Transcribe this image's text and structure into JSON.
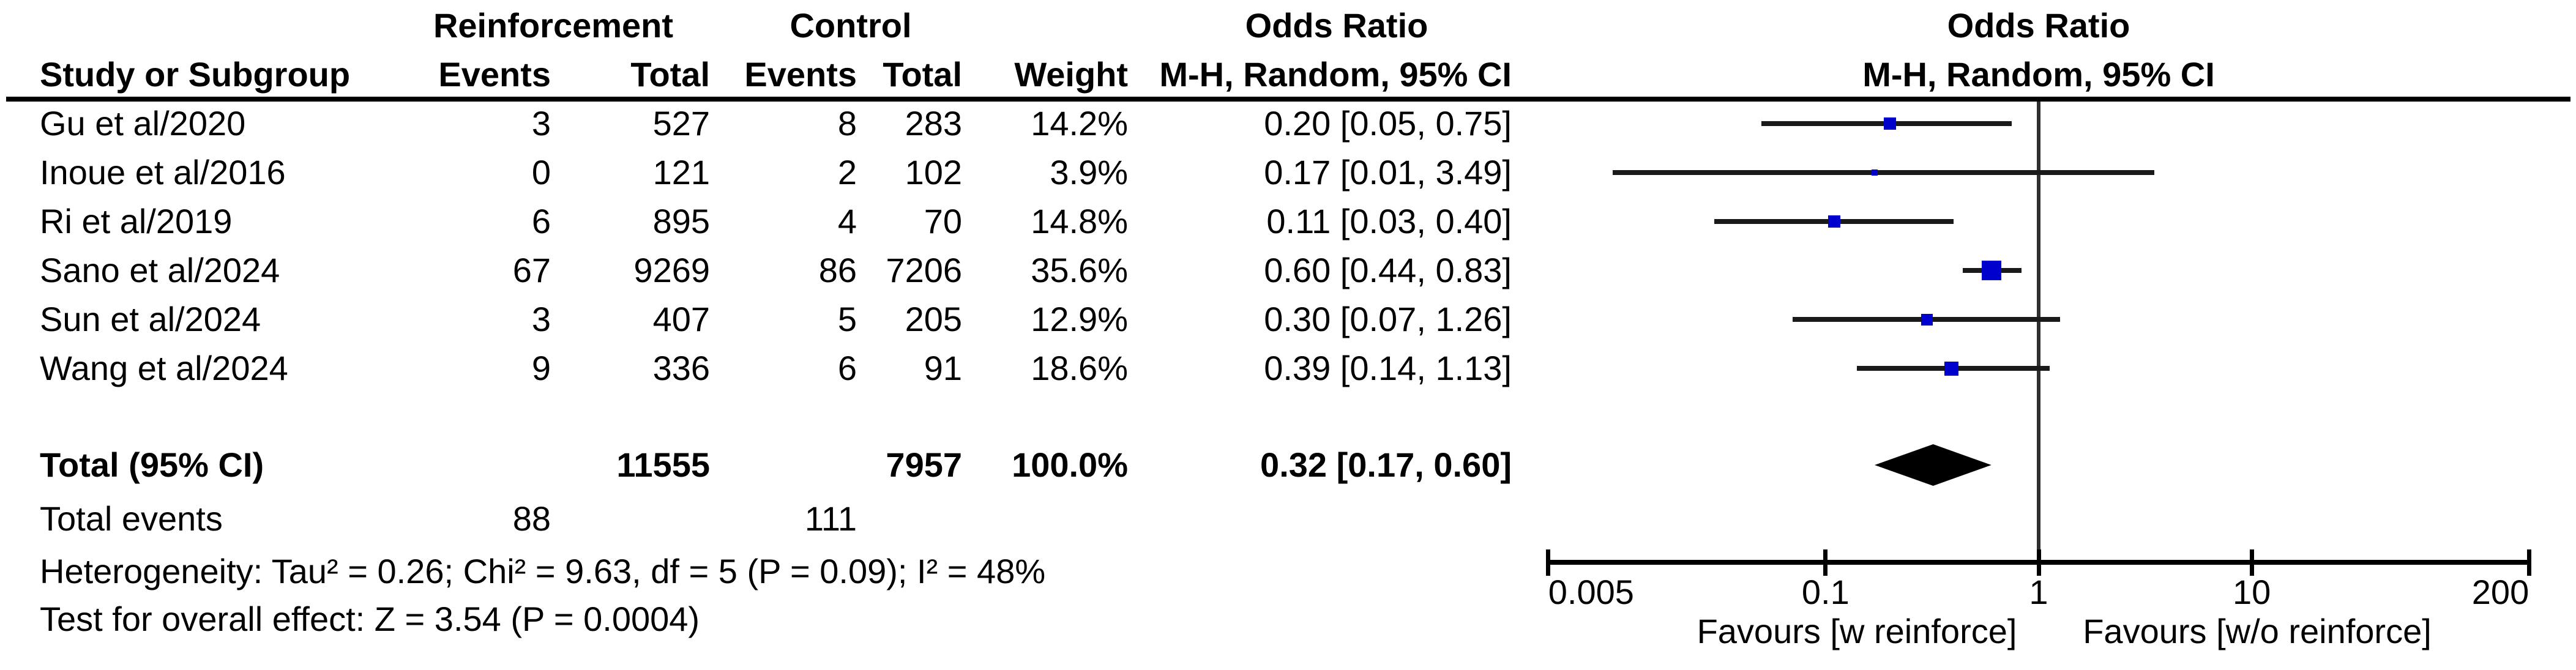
{
  "figure": {
    "group_headers": {
      "experimental": "Reinforcement",
      "control": "Control",
      "odds_ratio_col": "Odds Ratio",
      "odds_ratio_plot": "Odds Ratio"
    },
    "column_headers": {
      "study": "Study or Subgroup",
      "events_exp": "Events",
      "total_exp": "Total",
      "events_ctrl": "Events",
      "total_ctrl": "Total",
      "weight": "Weight",
      "mh_ci_col": "M-H, Random, 95% CI",
      "mh_ci_plot": "M-H, Random, 95% CI"
    }
  },
  "chart_data": {
    "type": "forest",
    "effect_measure": "Odds Ratio",
    "method": "M-H, Random, 95% CI",
    "x_scale": "log",
    "xlim": [
      0.005,
      200
    ],
    "x_ticks": [
      0.005,
      0.1,
      1,
      10,
      200
    ],
    "x_tick_labels": [
      "0.005",
      "0.1",
      "1",
      "10",
      "200"
    ],
    "null_line": 1,
    "favours_left": "Favours [w reinforce]",
    "favours_right": "Favours [w/o reinforce]",
    "marker_color": "#0000cc",
    "line_color": "#1a1a1a",
    "studies": [
      {
        "name": "Gu et al/2020",
        "events_exp": 3,
        "total_exp": 527,
        "events_ctrl": 8,
        "total_ctrl": 283,
        "weight": "14.2%",
        "weight_pct": 14.2,
        "or": 0.2,
        "ci_low": 0.05,
        "ci_high": 0.75,
        "ci_label": "0.20 [0.05, 0.75]"
      },
      {
        "name": "Inoue et al/2016",
        "events_exp": 0,
        "total_exp": 121,
        "events_ctrl": 2,
        "total_ctrl": 102,
        "weight": "3.9%",
        "weight_pct": 3.9,
        "or": 0.17,
        "ci_low": 0.01,
        "ci_high": 3.49,
        "ci_label": "0.17 [0.01, 3.49]"
      },
      {
        "name": "Ri et al/2019",
        "events_exp": 6,
        "total_exp": 895,
        "events_ctrl": 4,
        "total_ctrl": 70,
        "weight": "14.8%",
        "weight_pct": 14.8,
        "or": 0.11,
        "ci_low": 0.03,
        "ci_high": 0.4,
        "ci_label": "0.11 [0.03, 0.40]"
      },
      {
        "name": "Sano et al/2024",
        "events_exp": 67,
        "total_exp": 9269,
        "events_ctrl": 86,
        "total_ctrl": 7206,
        "weight": "35.6%",
        "weight_pct": 35.6,
        "or": 0.6,
        "ci_low": 0.44,
        "ci_high": 0.83,
        "ci_label": "0.60 [0.44, 0.83]"
      },
      {
        "name": "Sun et al/2024",
        "events_exp": 3,
        "total_exp": 407,
        "events_ctrl": 5,
        "total_ctrl": 205,
        "weight": "12.9%",
        "weight_pct": 12.9,
        "or": 0.3,
        "ci_low": 0.07,
        "ci_high": 1.26,
        "ci_label": "0.30 [0.07, 1.26]"
      },
      {
        "name": "Wang et al/2024",
        "events_exp": 9,
        "total_exp": 336,
        "events_ctrl": 6,
        "total_ctrl": 91,
        "weight": "18.6%",
        "weight_pct": 18.6,
        "or": 0.39,
        "ci_low": 0.14,
        "ci_high": 1.13,
        "ci_label": "0.39 [0.14, 1.13]"
      }
    ],
    "total": {
      "label": "Total (95% CI)",
      "total_exp": 11555,
      "total_ctrl": 7957,
      "weight": "100.0%",
      "or": 0.32,
      "ci_low": 0.17,
      "ci_high": 0.6,
      "ci_label": "0.32 [0.17, 0.60]"
    },
    "total_events": {
      "label": "Total events",
      "events_exp": 88,
      "events_ctrl": 111
    },
    "heterogeneity": "Heterogeneity: Tau² = 0.26; Chi² = 9.63, df = 5 (P = 0.09); I² = 48%",
    "overall_effect": "Test for overall effect: Z = 3.54 (P = 0.0004)"
  }
}
